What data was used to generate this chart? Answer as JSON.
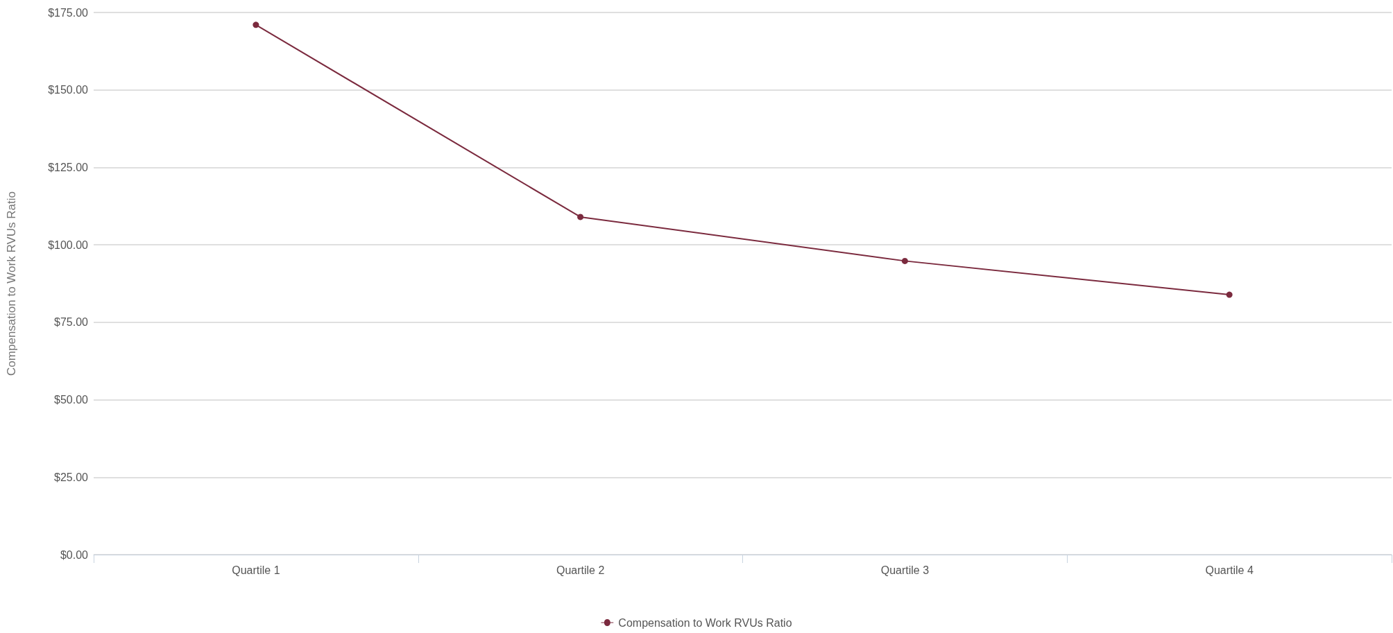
{
  "chart_data": {
    "type": "line",
    "ylabel": "Compensation to Work RVUs Ratio",
    "categories": [
      "Quartile 1",
      "Quartile 2",
      "Quartile 3",
      "Quartile 4"
    ],
    "series": [
      {
        "name": "Compensation to Work RVUs Ratio",
        "color": "#7b2a3e",
        "values": [
          171.0,
          109.0,
          94.8,
          83.9
        ]
      }
    ],
    "ylim": [
      0,
      175
    ],
    "yticks": [
      {
        "value": 0,
        "label": "$0.00"
      },
      {
        "value": 25,
        "label": "$25.00"
      },
      {
        "value": 50,
        "label": "$50.00"
      },
      {
        "value": 75,
        "label": "$75.00"
      },
      {
        "value": 100,
        "label": "$100.00"
      },
      {
        "value": 125,
        "label": "$125.00"
      },
      {
        "value": 150,
        "label": "$150.00"
      },
      {
        "value": 175,
        "label": "$175.00"
      }
    ],
    "grid": "y",
    "legend": "bottom",
    "marker": "circle",
    "line_style": "solid"
  }
}
